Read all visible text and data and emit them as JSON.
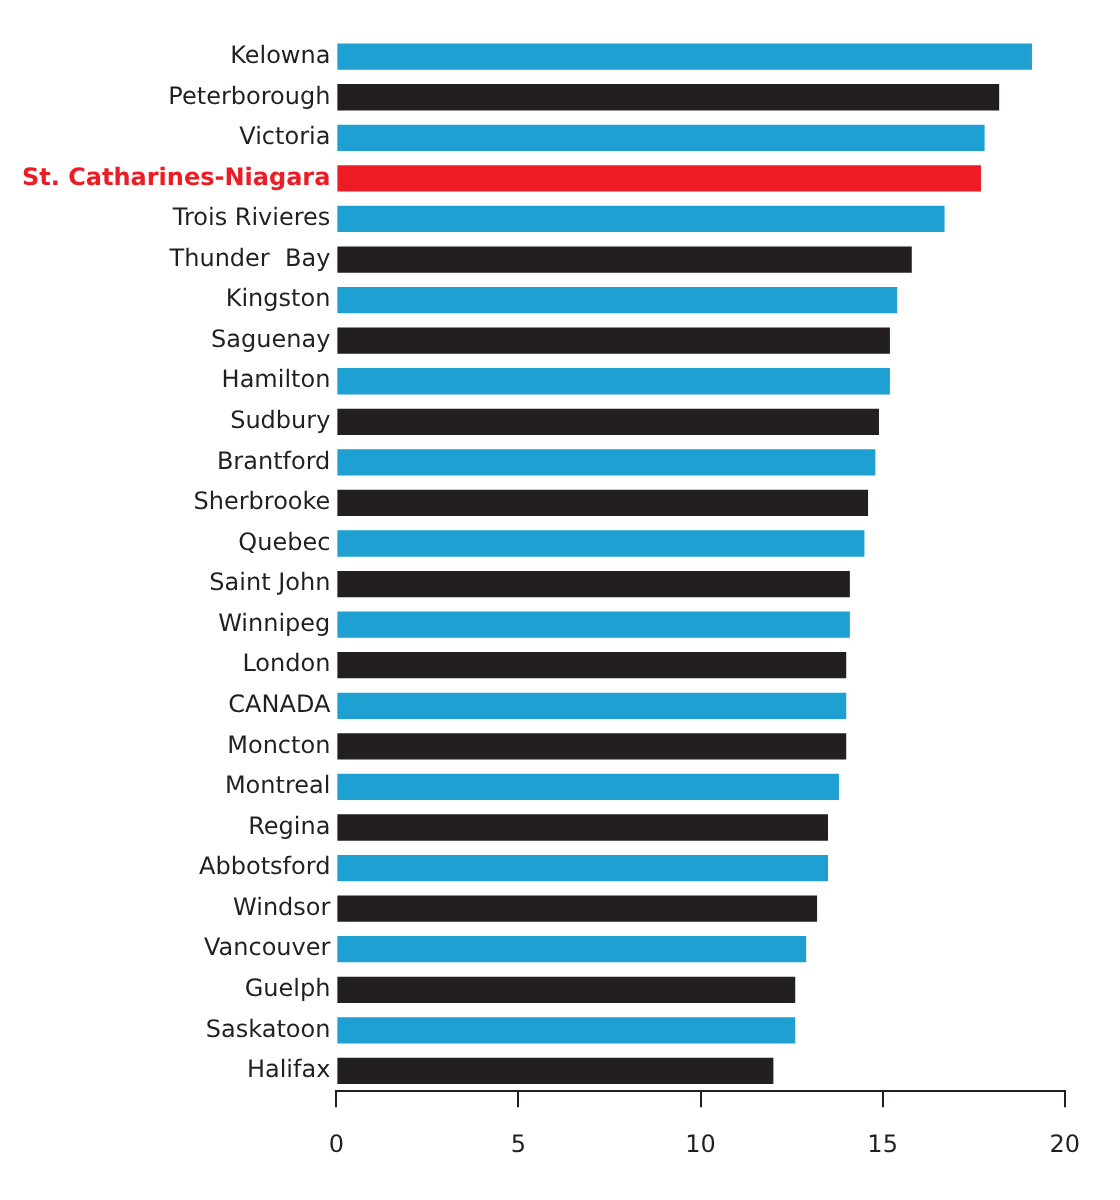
{
  "chart_data": {
    "type": "bar",
    "orientation": "horizontal",
    "categories": [
      "Kelowna",
      "Peterborough",
      "Victoria",
      "St. Catharines-Niagara",
      "Trois Rivieres",
      "Thunder  Bay",
      "Kingston",
      "Saguenay",
      "Hamilton",
      "Sudbury",
      "Brantford",
      "Sherbrooke",
      "Quebec",
      "Saint John",
      "Winnipeg",
      "London",
      "CANADA",
      "Moncton",
      "Montreal",
      "Regina",
      "Abbotsford",
      "Windsor",
      "Vancouver",
      "Guelph",
      "Saskatoon",
      "Halifax"
    ],
    "values": [
      19.1,
      18.2,
      17.8,
      17.7,
      16.7,
      15.8,
      15.4,
      15.2,
      15.2,
      14.9,
      14.8,
      14.6,
      14.5,
      14.1,
      14.1,
      14.0,
      14.0,
      14.0,
      13.8,
      13.5,
      13.5,
      13.2,
      12.9,
      12.6,
      12.6,
      12.0
    ],
    "colors": [
      "#1ea0d2",
      "#231f20",
      "#1ea0d2",
      "#ed1c24",
      "#1ea0d2",
      "#231f20",
      "#1ea0d2",
      "#231f20",
      "#1ea0d2",
      "#231f20",
      "#1ea0d2",
      "#231f20",
      "#1ea0d2",
      "#231f20",
      "#1ea0d2",
      "#231f20",
      "#1ea0d2",
      "#231f20",
      "#1ea0d2",
      "#231f20",
      "#1ea0d2",
      "#231f20",
      "#1ea0d2",
      "#231f20",
      "#1ea0d2",
      "#231f20"
    ],
    "xlim": [
      0,
      20
    ],
    "xticks": [
      0,
      5,
      10,
      15,
      20
    ],
    "grid": false,
    "legend": false
  }
}
